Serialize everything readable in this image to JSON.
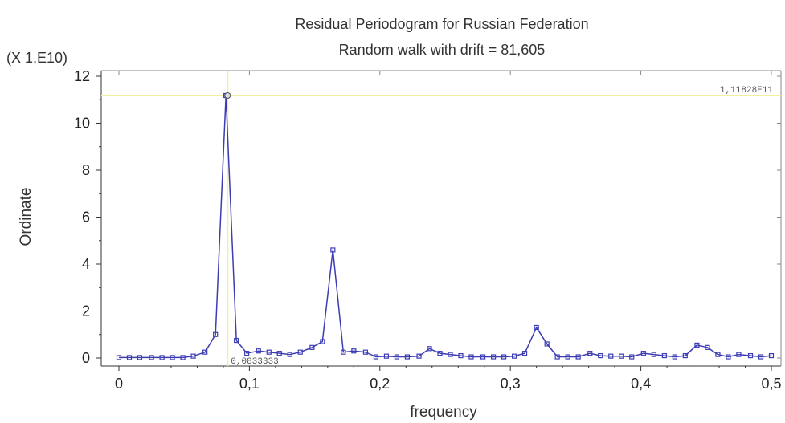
{
  "chart_data": {
    "type": "line",
    "title": "Residual Periodogram for Russian Federation",
    "subtitle": "Random walk with drift = 81,605",
    "xlabel": "frequency",
    "ylabel": "Ordinate",
    "y_multiplier_label": "(X 1,E10)",
    "xlim": [
      0,
      0.5
    ],
    "ylim": [
      0,
      12
    ],
    "x_ticks": [
      0,
      0.1,
      0.2,
      0.3,
      0.4,
      0.5
    ],
    "x_tick_labels": [
      "0",
      "0,1",
      "0,2",
      "0,3",
      "0,4",
      "0,5"
    ],
    "y_ticks": [
      0,
      2,
      4,
      6,
      8,
      10,
      12
    ],
    "y_tick_labels": [
      "0",
      "2",
      "4",
      "6",
      "8",
      "10",
      "12"
    ],
    "grid": false,
    "series": [
      {
        "color": "#3c3cb4",
        "x": [
          0,
          0.008,
          0.016,
          0.025,
          0.033,
          0.041,
          0.049,
          0.057,
          0.066,
          0.074,
          0.082,
          0.09,
          0.098,
          0.107,
          0.115,
          0.123,
          0.131,
          0.139,
          0.148,
          0.156,
          0.164,
          0.172,
          0.18,
          0.189,
          0.197,
          0.205,
          0.213,
          0.221,
          0.23,
          0.238,
          0.246,
          0.254,
          0.262,
          0.27,
          0.279,
          0.287,
          0.295,
          0.303,
          0.311,
          0.32,
          0.328,
          0.336,
          0.344,
          0.352,
          0.361,
          0.369,
          0.377,
          0.385,
          0.393,
          0.402,
          0.41,
          0.418,
          0.426,
          0.434,
          0.443,
          0.451,
          0.459,
          0.467,
          0.475,
          0.484,
          0.492,
          0.5
        ],
        "values": [
          0.02,
          0.02,
          0.02,
          0.02,
          0.02,
          0.02,
          0.02,
          0.08,
          0.25,
          1.0,
          11.18,
          0.75,
          0.2,
          0.3,
          0.25,
          0.2,
          0.15,
          0.25,
          0.45,
          0.7,
          4.6,
          0.25,
          0.3,
          0.25,
          0.05,
          0.08,
          0.05,
          0.05,
          0.08,
          0.4,
          0.2,
          0.15,
          0.1,
          0.05,
          0.05,
          0.05,
          0.05,
          0.08,
          0.2,
          1.3,
          0.6,
          0.05,
          0.05,
          0.05,
          0.2,
          0.1,
          0.08,
          0.08,
          0.05,
          0.2,
          0.15,
          0.1,
          0.05,
          0.1,
          0.55,
          0.45,
          0.15,
          0.05,
          0.15,
          0.1,
          0.05,
          0.1
        ]
      }
    ],
    "peak_marker": {
      "x": 0.0833,
      "y": 11.18,
      "value_label": "1,11828E11",
      "x_label": "0,0833333"
    }
  },
  "colors": {
    "series": "#3c3cb4",
    "crosshair": "#f0f0a0",
    "axis": "#333333"
  }
}
